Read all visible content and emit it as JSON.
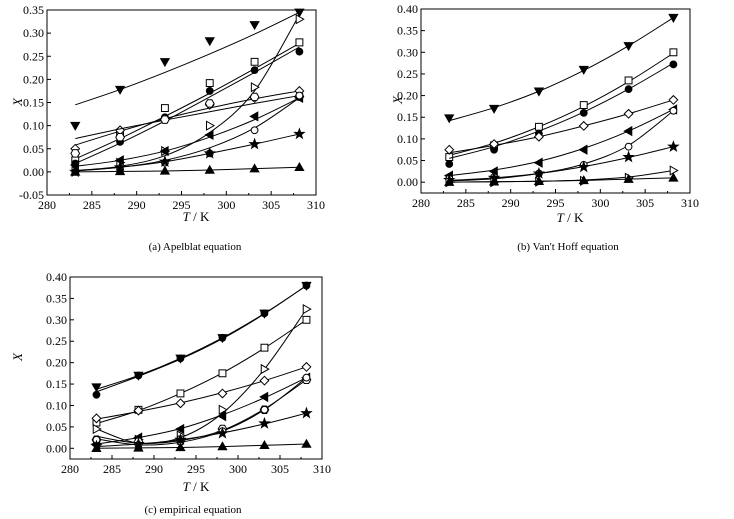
{
  "figure": {
    "captions": [
      "(a) Apelblat equation",
      "(b) Van't Hoff equation",
      "(c) empirical equation"
    ]
  },
  "chart_data": [
    {
      "type": "scatter",
      "title": "(a) Apelblat equation",
      "xlabel_italic": "T",
      "xlabel_unit": " / K",
      "ylabel": "X",
      "xlim": [
        280,
        310
      ],
      "ylim": [
        -0.05,
        0.35
      ],
      "xticks": [
        280,
        285,
        290,
        295,
        300,
        305,
        310
      ],
      "yticks": [
        -0.05,
        0.0,
        0.05,
        0.1,
        0.15,
        0.2,
        0.25,
        0.3,
        0.35
      ],
      "ytick_labels": [
        "-0.05",
        "0.00",
        "0.05",
        "0.10",
        "0.15",
        "0.20",
        "0.25",
        "0.30",
        "0.35"
      ],
      "x": [
        283.15,
        288.15,
        293.15,
        298.15,
        303.15,
        308.15
      ],
      "series": [
        {
          "name": "down-triangle-filled",
          "marker": "tri-down-filled",
          "values": [
            0.1,
            0.178,
            0.238,
            0.283,
            0.318,
            0.345
          ],
          "fit": [
            0.145,
            0.178,
            0.215,
            0.255,
            0.298,
            0.345
          ]
        },
        {
          "name": "open-square",
          "marker": "square-open",
          "values": [
            0.025,
            0.085,
            0.138,
            0.192,
            0.238,
            0.28
          ],
          "fit": [
            0.028,
            0.072,
            0.12,
            0.17,
            0.223,
            0.278
          ]
        },
        {
          "name": "filled-circle",
          "marker": "circle-filled",
          "values": [
            0.018,
            0.065,
            0.118,
            0.175,
            0.22,
            0.26
          ],
          "fit": [
            0.018,
            0.062,
            0.11,
            0.162,
            0.215,
            0.27
          ]
        },
        {
          "name": "right-triangle-open",
          "marker": "tri-right-open",
          "values": [
            0.002,
            0.02,
            0.045,
            0.1,
            0.183,
            0.33
          ],
          "fit": [
            0.003,
            0.012,
            0.035,
            0.085,
            0.175,
            0.34
          ]
        },
        {
          "name": "open-diamond",
          "marker": "diamond-open",
          "values": [
            0.05,
            0.09,
            0.115,
            0.145,
            0.16,
            0.175
          ],
          "fit": [
            0.058,
            0.088,
            0.115,
            0.138,
            0.158,
            0.175
          ]
        },
        {
          "name": "open-hexagon",
          "marker": "hex-open",
          "values": [
            0.04,
            0.075,
            0.113,
            0.148,
            0.162,
            0.163
          ],
          "fit": [
            0.072,
            0.093,
            0.112,
            0.13,
            0.148,
            0.165
          ]
        },
        {
          "name": "left-triangle-filled",
          "marker": "tri-left-filled",
          "values": [
            0.015,
            0.025,
            0.045,
            0.08,
            0.12,
            0.16
          ],
          "fit": [
            0.012,
            0.025,
            0.045,
            0.075,
            0.113,
            0.16
          ]
        },
        {
          "name": "open-circle",
          "marker": "circle-open",
          "values": [
            0.0,
            0.005,
            0.02,
            0.04,
            0.09,
            0.165
          ],
          "fit": [
            0.002,
            0.01,
            0.025,
            0.052,
            0.095,
            0.16
          ]
        },
        {
          "name": "filled-star",
          "marker": "star-filled",
          "values": [
            0.0,
            0.01,
            0.022,
            0.04,
            0.06,
            0.082
          ],
          "fit": [
            0.002,
            0.01,
            0.022,
            0.04,
            0.06,
            0.082
          ]
        },
        {
          "name": "up-triangle-filled",
          "marker": "tri-up-filled",
          "values": [
            0.0,
            0.001,
            0.002,
            0.004,
            0.007,
            0.01
          ],
          "fit": [
            0.0,
            0.001,
            0.002,
            0.004,
            0.007,
            0.01
          ]
        }
      ]
    },
    {
      "type": "scatter",
      "title": "(b) Van't Hoff equation",
      "xlabel_italic": "T",
      "xlabel_unit": " / K",
      "ylabel": "X",
      "xlim": [
        280,
        310
      ],
      "ylim": [
        -0.025,
        0.4
      ],
      "xticks": [
        280,
        285,
        290,
        295,
        300,
        305,
        310
      ],
      "yticks": [
        0.0,
        0.05,
        0.1,
        0.15,
        0.2,
        0.25,
        0.3,
        0.35,
        0.4
      ],
      "ytick_labels": [
        "0.00",
        "0.05",
        "0.10",
        "0.15",
        "0.20",
        "0.25",
        "0.30",
        "0.35",
        "0.40"
      ],
      "x": [
        283.15,
        288.15,
        293.15,
        298.15,
        303.15,
        308.15
      ],
      "series": [
        {
          "name": "down-triangle-filled",
          "marker": "tri-down-filled",
          "values": [
            0.148,
            0.17,
            0.21,
            0.26,
            0.315,
            0.38
          ],
          "fit": [
            0.142,
            0.172,
            0.21,
            0.258,
            0.315,
            0.38
          ]
        },
        {
          "name": "open-square",
          "marker": "square-open",
          "values": [
            0.058,
            0.085,
            0.128,
            0.178,
            0.235,
            0.3
          ],
          "fit": [
            0.062,
            0.09,
            0.128,
            0.175,
            0.232,
            0.298
          ]
        },
        {
          "name": "filled-circle",
          "marker": "circle-filled",
          "values": [
            0.042,
            0.075,
            0.112,
            0.16,
            0.215,
            0.272
          ],
          "fit": [
            0.055,
            0.082,
            0.118,
            0.162,
            0.215,
            0.275
          ]
        },
        {
          "name": "open-diamond",
          "marker": "diamond-open",
          "values": [
            0.075,
            0.088,
            0.105,
            0.13,
            0.158,
            0.19
          ],
          "fit": [
            0.068,
            0.085,
            0.105,
            0.13,
            0.158,
            0.19
          ]
        },
        {
          "name": "left-triangle-filled",
          "marker": "tri-left-filled",
          "values": [
            0.015,
            0.025,
            0.045,
            0.075,
            0.118,
            0.168
          ],
          "fit": [
            0.015,
            0.028,
            0.048,
            0.078,
            0.118,
            0.168
          ]
        },
        {
          "name": "open-circle",
          "marker": "circle-open",
          "values": [
            0.008,
            0.012,
            0.02,
            0.04,
            0.082,
            0.165
          ],
          "fit": [
            0.003,
            0.008,
            0.02,
            0.042,
            0.085,
            0.165
          ]
        },
        {
          "name": "filled-star",
          "marker": "star-filled",
          "values": [
            0.005,
            0.01,
            0.02,
            0.035,
            0.058,
            0.082
          ],
          "fit": [
            0.004,
            0.01,
            0.02,
            0.036,
            0.057,
            0.082
          ]
        },
        {
          "name": "right-triangle-open",
          "marker": "tri-right-open",
          "values": [
            0.0,
            0.0,
            0.001,
            0.003,
            0.01,
            0.027
          ],
          "fit": [
            0.0,
            0.001,
            0.002,
            0.005,
            0.012,
            0.027
          ]
        },
        {
          "name": "up-triangle-filled",
          "marker": "tri-up-filled",
          "values": [
            0.0,
            0.001,
            0.002,
            0.004,
            0.007,
            0.01
          ],
          "fit": [
            0.0,
            0.001,
            0.002,
            0.004,
            0.007,
            0.01
          ]
        }
      ]
    },
    {
      "type": "scatter",
      "title": "(c) empirical equation",
      "xlabel_italic": "T",
      "xlabel_unit": " / K",
      "ylabel": "X",
      "xlim": [
        280,
        310
      ],
      "ylim": [
        -0.025,
        0.4
      ],
      "xticks": [
        280,
        285,
        290,
        295,
        300,
        305,
        310
      ],
      "yticks": [
        0.0,
        0.05,
        0.1,
        0.15,
        0.2,
        0.25,
        0.3,
        0.35,
        0.4
      ],
      "ytick_labels": [
        "0.00",
        "0.05",
        "0.10",
        "0.15",
        "0.20",
        "0.25",
        "0.30",
        "0.35",
        "0.40"
      ],
      "x": [
        283.15,
        288.15,
        293.15,
        298.15,
        303.15,
        308.15
      ],
      "series": [
        {
          "name": "down-triangle-filled",
          "marker": "tri-down-filled",
          "values": [
            0.143,
            0.17,
            0.21,
            0.258,
            0.315,
            0.38
          ],
          "fit": [
            0.138,
            0.17,
            0.21,
            0.258,
            0.315,
            0.38
          ]
        },
        {
          "name": "filled-circle",
          "marker": "circle-filled",
          "values": [
            0.125,
            0.17,
            0.21,
            0.258,
            0.315,
            0.38
          ],
          "fit": [
            0.132,
            0.168,
            0.208,
            0.256,
            0.314,
            0.38
          ]
        },
        {
          "name": "open-square",
          "marker": "square-open",
          "values": [
            0.06,
            0.09,
            0.128,
            0.175,
            0.235,
            0.3
          ],
          "fit": [
            0.058,
            0.088,
            0.128,
            0.176,
            0.234,
            0.3
          ]
        },
        {
          "name": "right-triangle-open",
          "marker": "tri-right-open",
          "values": [
            0.045,
            0.02,
            0.03,
            0.09,
            0.185,
            0.325
          ],
          "fit": [
            0.045,
            0.012,
            0.025,
            0.082,
            0.185,
            0.325
          ]
        },
        {
          "name": "open-diamond",
          "marker": "diamond-open",
          "values": [
            0.07,
            0.088,
            0.105,
            0.128,
            0.158,
            0.19
          ],
          "fit": [
            0.068,
            0.086,
            0.106,
            0.13,
            0.158,
            0.19
          ]
        },
        {
          "name": "left-triangle-filled",
          "marker": "tri-left-filled",
          "values": [
            0.01,
            0.025,
            0.045,
            0.075,
            0.12,
            0.165
          ],
          "fit": [
            0.01,
            0.025,
            0.046,
            0.078,
            0.118,
            0.165
          ]
        },
        {
          "name": "open-hexagon",
          "marker": "hex-open",
          "values": [
            0.02,
            0.015,
            0.02,
            0.045,
            0.09,
            0.16
          ],
          "fit": [
            0.028,
            0.012,
            0.018,
            0.042,
            0.092,
            0.16
          ]
        },
        {
          "name": "open-circle",
          "marker": "circle-open",
          "values": [
            0.02,
            0.008,
            0.015,
            0.04,
            0.09,
            0.165
          ],
          "fit": [
            0.022,
            0.008,
            0.014,
            0.04,
            0.09,
            0.165
          ]
        },
        {
          "name": "filled-star",
          "marker": "star-filled",
          "values": [
            0.005,
            0.01,
            0.02,
            0.035,
            0.058,
            0.082
          ],
          "fit": [
            0.004,
            0.01,
            0.02,
            0.036,
            0.057,
            0.082
          ]
        },
        {
          "name": "up-triangle-filled",
          "marker": "tri-up-filled",
          "values": [
            0.0,
            0.001,
            0.002,
            0.004,
            0.007,
            0.01
          ],
          "fit": [
            0.0,
            0.001,
            0.002,
            0.004,
            0.007,
            0.01
          ]
        }
      ]
    }
  ]
}
